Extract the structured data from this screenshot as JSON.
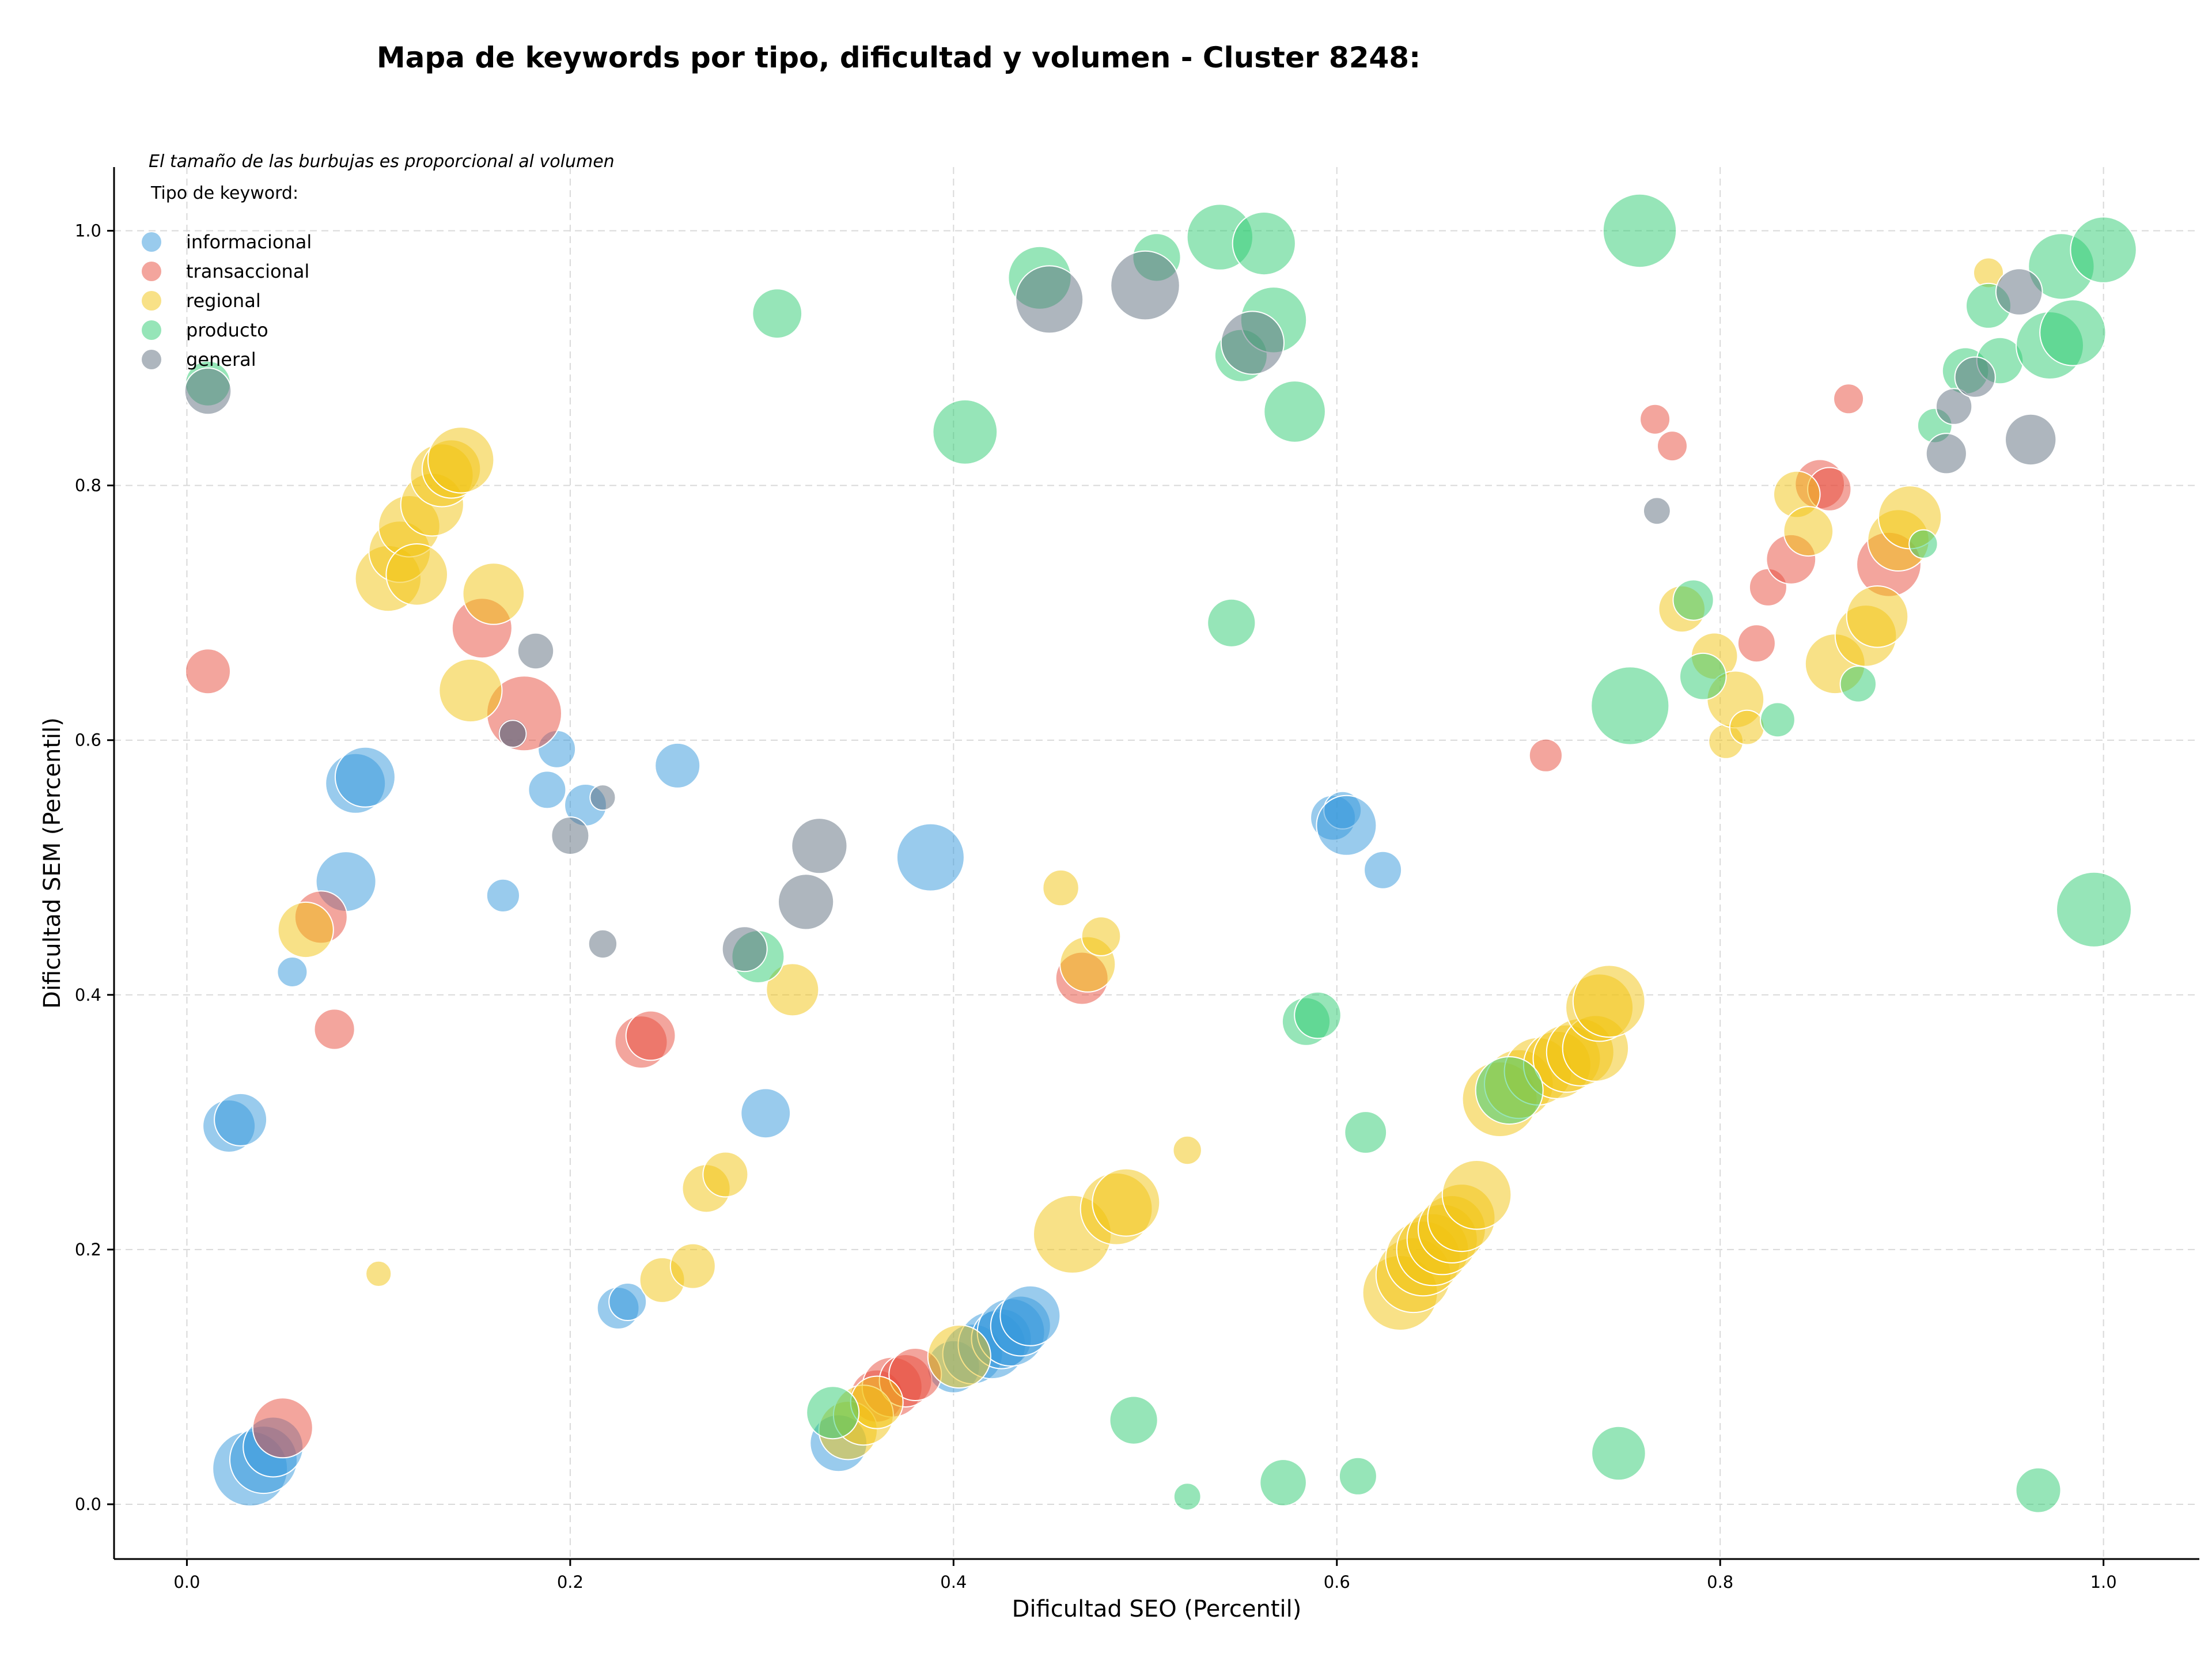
{
  "chart_data": {
    "type": "scatter",
    "title": "Mapa de keywords por tipo, dificultad y volumen - Cluster 8248:",
    "xlabel": "Dificultad SEO (Percentil)",
    "ylabel": "Dificultad SEM (Percentil)",
    "note": "El tamaño de las burbujas es proporcional al volumen",
    "legend_title": "Tipo de keyword:",
    "legend_placement": "top-left",
    "grid": true,
    "xlim": [
      -0.038,
      1.05
    ],
    "ylim": [
      -0.043,
      1.05
    ],
    "xticks": [
      0.0,
      0.2,
      0.4,
      0.6,
      0.8,
      1.0
    ],
    "yticks": [
      0.0,
      0.2,
      0.4,
      0.6,
      0.8,
      1.0
    ],
    "xtick_labels": [
      "0.0",
      "0.2",
      "0.4",
      "0.6",
      "0.8",
      "1.0"
    ],
    "ytick_labels": [
      "0.0",
      "0.2",
      "0.4",
      "0.6",
      "0.8",
      "1.0"
    ],
    "size_encoding": "volumen",
    "series": [
      {
        "name": "informacional",
        "color": "#3498db",
        "points": [
          [
            0.033,
            0.028,
            5
          ],
          [
            0.04,
            0.035,
            4.5
          ],
          [
            0.045,
            0.045,
            4
          ],
          [
            0.022,
            0.297,
            3.5
          ],
          [
            0.028,
            0.302,
            3.5
          ],
          [
            0.055,
            0.418,
            2
          ],
          [
            0.083,
            0.489,
            4
          ],
          [
            0.088,
            0.566,
            4
          ],
          [
            0.093,
            0.571,
            4
          ],
          [
            0.165,
            0.478,
            2.2
          ],
          [
            0.17,
            0.605,
            2
          ],
          [
            0.188,
            0.561,
            2.5
          ],
          [
            0.193,
            0.593,
            2.5
          ],
          [
            0.208,
            0.549,
            2.8
          ],
          [
            0.225,
            0.154,
            2.8
          ],
          [
            0.23,
            0.159,
            2.5
          ],
          [
            0.256,
            0.58,
            3
          ],
          [
            0.302,
            0.307,
            3.3
          ],
          [
            0.34,
            0.048,
            3.8
          ],
          [
            0.388,
            0.508,
            4.5
          ],
          [
            0.4,
            0.108,
            3.5
          ],
          [
            0.41,
            0.118,
            4
          ],
          [
            0.42,
            0.125,
            4.5
          ],
          [
            0.425,
            0.13,
            4
          ],
          [
            0.43,
            0.135,
            4.5
          ],
          [
            0.435,
            0.14,
            4
          ],
          [
            0.44,
            0.148,
            4
          ],
          [
            0.598,
            0.539,
            3
          ],
          [
            0.603,
            0.545,
            2.5
          ],
          [
            0.605,
            0.533,
            4
          ],
          [
            0.624,
            0.498,
            2.5
          ]
        ]
      },
      {
        "name": "transaccional",
        "color": "#e74c3c",
        "points": [
          [
            0.05,
            0.06,
            4
          ],
          [
            0.011,
            0.654,
            3
          ],
          [
            0.07,
            0.461,
            3.5
          ],
          [
            0.077,
            0.373,
            2.7
          ],
          [
            0.154,
            0.688,
            4
          ],
          [
            0.176,
            0.621,
            5
          ],
          [
            0.237,
            0.363,
            3.5
          ],
          [
            0.242,
            0.368,
            3.3
          ],
          [
            0.36,
            0.085,
            3.5
          ],
          [
            0.368,
            0.092,
            4
          ],
          [
            0.375,
            0.097,
            3.5
          ],
          [
            0.38,
            0.102,
            3.5
          ],
          [
            0.467,
            0.413,
            3.5
          ],
          [
            0.709,
            0.588,
            2.2
          ],
          [
            0.766,
            0.852,
            2
          ],
          [
            0.775,
            0.831,
            2
          ],
          [
            0.819,
            0.676,
            2.5
          ],
          [
            0.825,
            0.72,
            2.5
          ],
          [
            0.837,
            0.742,
            3.3
          ],
          [
            0.852,
            0.801,
            3.3
          ],
          [
            0.857,
            0.797,
            2.9
          ],
          [
            0.867,
            0.868,
            2
          ],
          [
            0.888,
            0.738,
            4.3
          ]
        ]
      },
      {
        "name": "regional",
        "color": "#f1c40f",
        "points": [
          [
            0.062,
            0.451,
            3.7
          ],
          [
            0.1,
            0.181,
            1.7
          ],
          [
            0.105,
            0.727,
            4.4
          ],
          [
            0.111,
            0.748,
            4.1
          ],
          [
            0.116,
            0.768,
            4.1
          ],
          [
            0.12,
            0.73,
            4.1
          ],
          [
            0.128,
            0.785,
            4.2
          ],
          [
            0.133,
            0.808,
            4.2
          ],
          [
            0.138,
            0.813,
            3.9
          ],
          [
            0.143,
            0.82,
            4.4
          ],
          [
            0.148,
            0.639,
            4.2
          ],
          [
            0.16,
            0.715,
            4.1
          ],
          [
            0.248,
            0.176,
            3
          ],
          [
            0.264,
            0.187,
            3
          ],
          [
            0.271,
            0.248,
            3.2
          ],
          [
            0.281,
            0.259,
            3
          ],
          [
            0.316,
            0.404,
            3.5
          ],
          [
            0.345,
            0.058,
            3.9
          ],
          [
            0.353,
            0.07,
            4
          ],
          [
            0.36,
            0.08,
            3.5
          ],
          [
            0.403,
            0.116,
            4.2
          ],
          [
            0.456,
            0.484,
            2.4
          ],
          [
            0.462,
            0.212,
            5.2
          ],
          [
            0.47,
            0.424,
            3.7
          ],
          [
            0.477,
            0.446,
            2.6
          ],
          [
            0.485,
            0.232,
            4.8
          ],
          [
            0.49,
            0.237,
            4.5
          ],
          [
            0.522,
            0.278,
            1.9
          ],
          [
            0.633,
            0.166,
            5
          ],
          [
            0.64,
            0.18,
            5
          ],
          [
            0.645,
            0.193,
            5
          ],
          [
            0.65,
            0.2,
            4.8
          ],
          [
            0.655,
            0.208,
            4.7
          ],
          [
            0.66,
            0.216,
            4.5
          ],
          [
            0.665,
            0.225,
            4.5
          ],
          [
            0.673,
            0.243,
            4.6
          ],
          [
            0.685,
            0.318,
            5
          ],
          [
            0.695,
            0.33,
            4.6
          ],
          [
            0.705,
            0.34,
            4.5
          ],
          [
            0.715,
            0.345,
            4.5
          ],
          [
            0.72,
            0.35,
            4.5
          ],
          [
            0.727,
            0.355,
            4.5
          ],
          [
            0.735,
            0.358,
            4.4
          ],
          [
            0.737,
            0.39,
            4.5
          ],
          [
            0.742,
            0.395,
            4.8
          ],
          [
            0.78,
            0.703,
            3.1
          ],
          [
            0.797,
            0.666,
            3.1
          ],
          [
            0.803,
            0.599,
            2.3
          ],
          [
            0.808,
            0.632,
            3.8
          ],
          [
            0.814,
            0.61,
            2.3
          ],
          [
            0.84,
            0.793,
            3.1
          ],
          [
            0.846,
            0.764,
            3.3
          ],
          [
            0.86,
            0.66,
            4
          ],
          [
            0.876,
            0.682,
            4.1
          ],
          [
            0.882,
            0.697,
            4.1
          ],
          [
            0.893,
            0.757,
            4.1
          ],
          [
            0.899,
            0.775,
            4.2
          ],
          [
            0.94,
            0.967,
            2
          ]
        ]
      },
      {
        "name": "producto",
        "color": "#2ecc71",
        "points": [
          [
            0.011,
            0.88,
            3
          ],
          [
            0.298,
            0.43,
            3.5
          ],
          [
            0.308,
            0.935,
            3.3
          ],
          [
            0.337,
            0.072,
            3.5
          ],
          [
            0.406,
            0.842,
            4.3
          ],
          [
            0.445,
            0.963,
            4.2
          ],
          [
            0.494,
            0.066,
            3.2
          ],
          [
            0.506,
            0.979,
            3.2
          ],
          [
            0.522,
            0.006,
            1.8
          ],
          [
            0.539,
            0.995,
            4.4
          ],
          [
            0.545,
            0.692,
            3.2
          ],
          [
            0.55,
            0.902,
            3.5
          ],
          [
            0.562,
            0.99,
            4.2
          ],
          [
            0.567,
            0.93,
            4.4
          ],
          [
            0.572,
            0.017,
            3.1
          ],
          [
            0.578,
            0.858,
            4.1
          ],
          [
            0.584,
            0.379,
            3.2
          ],
          [
            0.59,
            0.384,
            3.1
          ],
          [
            0.611,
            0.022,
            2.5
          ],
          [
            0.615,
            0.292,
            2.8
          ],
          [
            0.69,
            0.325,
            4.5
          ],
          [
            0.747,
            0.04,
            3.6
          ],
          [
            0.753,
            0.627,
            5.2
          ],
          [
            0.758,
            1.0,
            4.9
          ],
          [
            0.786,
            0.71,
            2.7
          ],
          [
            0.791,
            0.65,
            3.1
          ],
          [
            0.83,
            0.616,
            2.3
          ],
          [
            0.872,
            0.644,
            2.4
          ],
          [
            0.906,
            0.754,
            1.9
          ],
          [
            0.912,
            0.847,
            2.3
          ],
          [
            0.928,
            0.89,
            3.1
          ],
          [
            0.94,
            0.941,
            3
          ],
          [
            0.946,
            0.898,
            3.1
          ],
          [
            0.966,
            0.011,
            3
          ],
          [
            0.972,
            0.91,
            4.5
          ],
          [
            0.978,
            0.972,
            4.4
          ],
          [
            0.984,
            0.92,
            4.4
          ],
          [
            0.995,
            0.467,
            5
          ],
          [
            1.0,
            0.985,
            4.4
          ]
        ]
      },
      {
        "name": "general",
        "color": "#5d6d7e",
        "points": [
          [
            0.011,
            0.874,
            3.1
          ],
          [
            0.17,
            0.605,
            1.8
          ],
          [
            0.182,
            0.67,
            2.4
          ],
          [
            0.2,
            0.525,
            2.5
          ],
          [
            0.217,
            0.555,
            1.7
          ],
          [
            0.217,
            0.44,
            1.9
          ],
          [
            0.291,
            0.436,
            3
          ],
          [
            0.323,
            0.473,
            3.7
          ],
          [
            0.33,
            0.517,
            3.7
          ],
          [
            0.45,
            0.946,
            4.5
          ],
          [
            0.5,
            0.957,
            4.6
          ],
          [
            0.556,
            0.912,
            4.2
          ],
          [
            0.767,
            0.78,
            1.8
          ],
          [
            0.918,
            0.825,
            2.7
          ],
          [
            0.922,
            0.862,
            2.4
          ],
          [
            0.933,
            0.885,
            2.7
          ],
          [
            0.956,
            0.952,
            3.1
          ],
          [
            0.962,
            0.836,
            3.4
          ]
        ]
      }
    ]
  }
}
